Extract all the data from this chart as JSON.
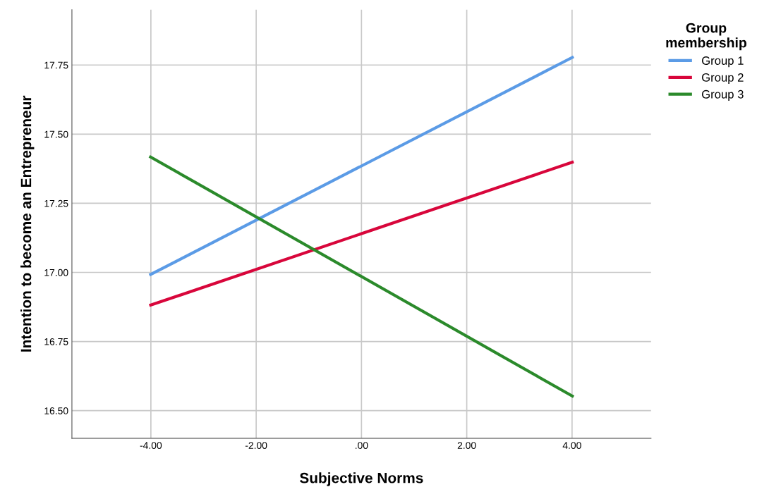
{
  "chart_data": {
    "type": "line",
    "xlabel": "Subjective Norms",
    "ylabel": "Intention to become an Entrepreneur",
    "legend_title": "Group\nmembership",
    "x": [
      -4.03,
      4.03
    ],
    "series": [
      {
        "name": "Group 1",
        "color": "#5b9be6",
        "values": [
          16.99,
          17.78
        ]
      },
      {
        "name": "Group 2",
        "color": "#d8063b",
        "values": [
          16.88,
          17.4
        ]
      },
      {
        "name": "Group 3",
        "color": "#2b8a2b",
        "values": [
          17.42,
          16.55
        ]
      }
    ],
    "xlim": [
      -5.5,
      5.5
    ],
    "ylim": [
      16.4,
      17.95
    ],
    "xticks": [
      {
        "value": -4,
        "label": "-4.00"
      },
      {
        "value": -2,
        "label": "-2.00"
      },
      {
        "value": 0,
        "label": ".00"
      },
      {
        "value": 2,
        "label": "2.00"
      },
      {
        "value": 4,
        "label": "4.00"
      }
    ],
    "yticks": [
      {
        "value": 16.5,
        "label": "16.50"
      },
      {
        "value": 16.75,
        "label": "16.75"
      },
      {
        "value": 17.0,
        "label": "17.00"
      },
      {
        "value": 17.25,
        "label": "17.25"
      },
      {
        "value": 17.5,
        "label": "17.50"
      },
      {
        "value": 17.75,
        "label": "17.75"
      }
    ],
    "grid": true,
    "legend": "top right",
    "marker": "none",
    "line_style": "solid"
  }
}
